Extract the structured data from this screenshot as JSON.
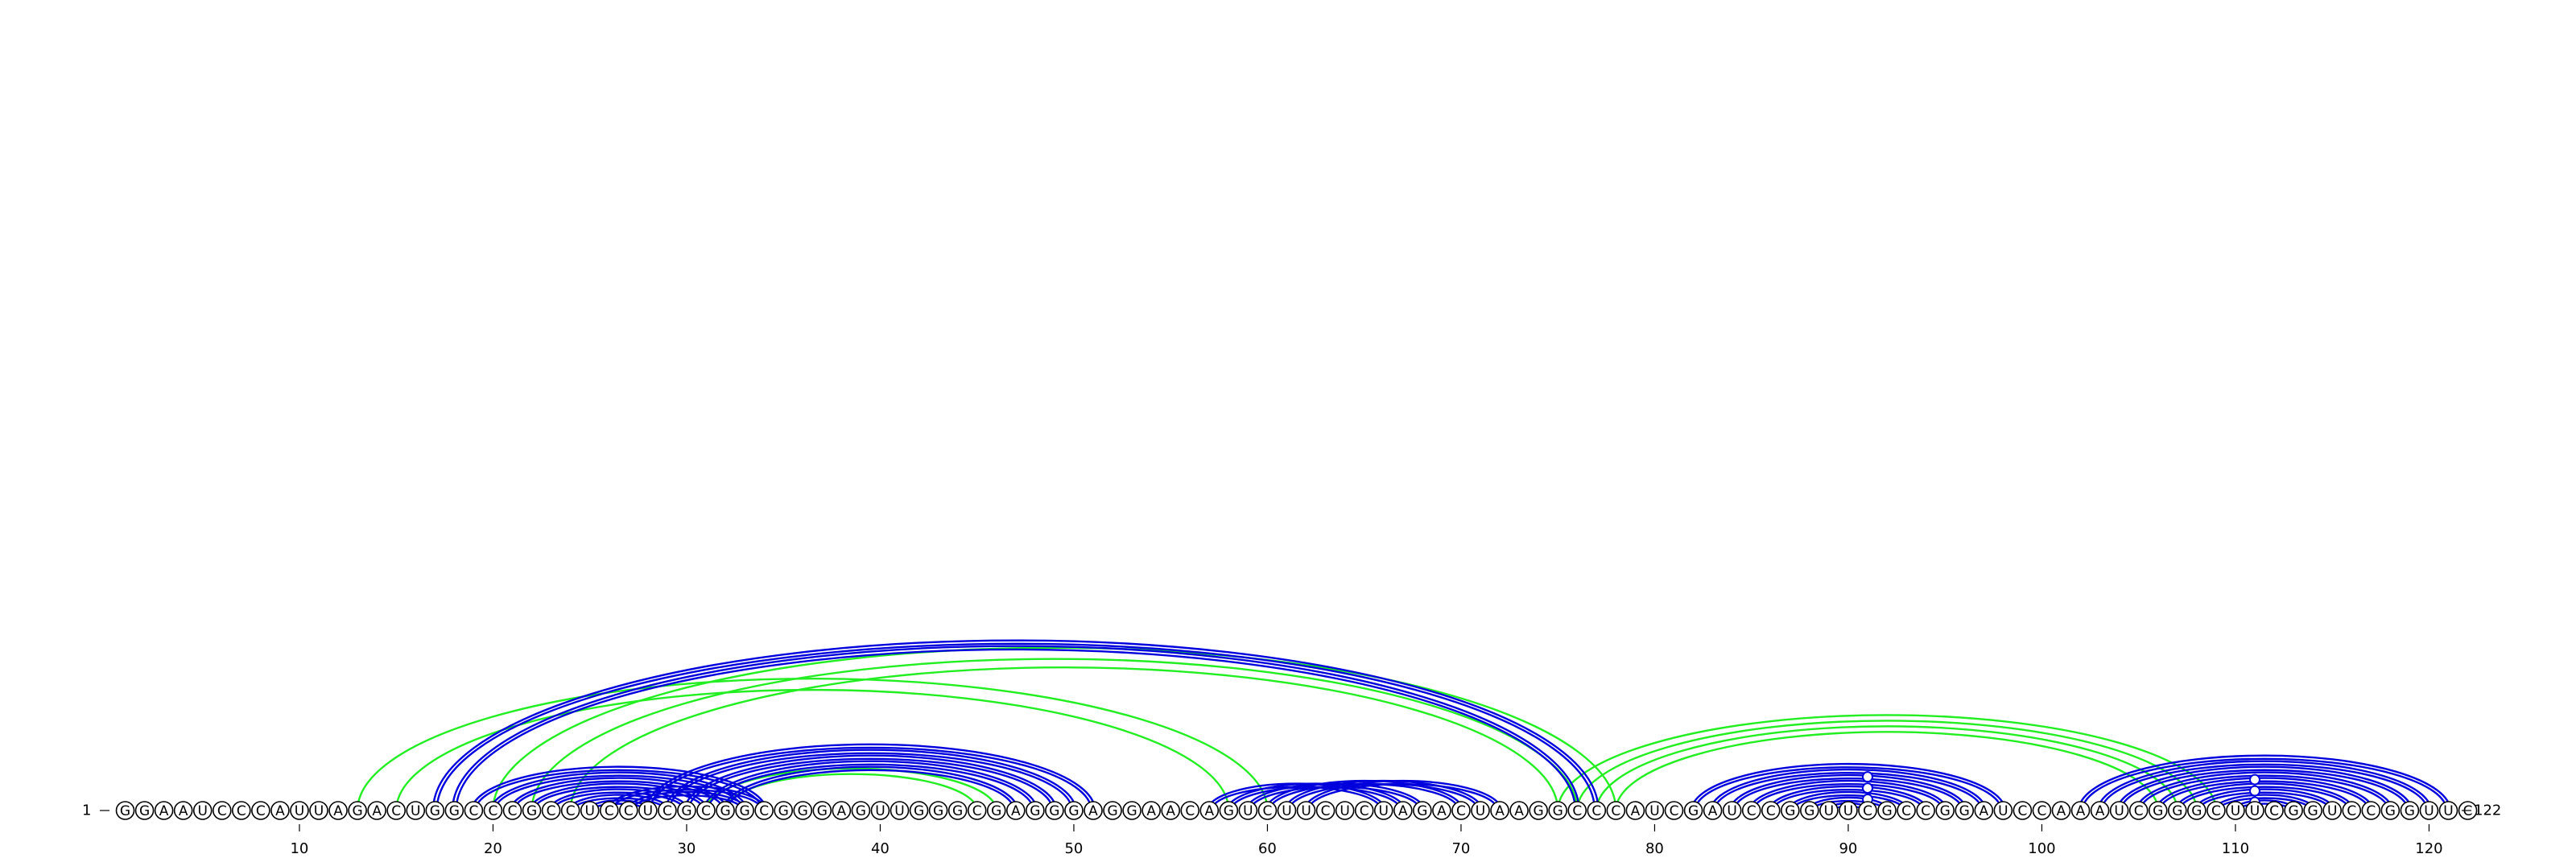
{
  "diagram": {
    "type": "rna-arc-diagram",
    "sequence": "GGAAUCCCAUUAGACUGGCCCGCCUCCUCGCGGCGGGAGUUGGGCGAGGGAGGAACAGUCUUCUCUAGACUAAGGCCCAUCGAUCCGGUUCGCCGGAUCCAAAUCGGGCUUCGGUCCGGUUC",
    "start_label": "1",
    "end_label": "122",
    "tick_labels": [
      "10",
      "20",
      "30",
      "40",
      "50",
      "60",
      "70",
      "80",
      "90",
      "100",
      "110",
      "120"
    ],
    "colors": {
      "blue": "#0000dd",
      "green": "#22ee22",
      "text": "#000000"
    },
    "arc_sets": [
      {
        "color": "green",
        "pairs": [
          [
            13,
            60
          ],
          [
            15,
            58
          ],
          [
            20,
            78
          ],
          [
            22,
            76
          ],
          [
            24,
            75
          ],
          [
            31,
            46
          ],
          [
            32,
            45
          ],
          [
            75,
            109
          ],
          [
            76,
            108
          ],
          [
            77,
            107
          ],
          [
            78,
            106
          ]
        ]
      },
      {
        "color": "blue",
        "pairs": [
          [
            17,
            77
          ],
          [
            18,
            76
          ],
          [
            19,
            34
          ],
          [
            20,
            33
          ],
          [
            21,
            32
          ],
          [
            22,
            31
          ],
          [
            23,
            30
          ],
          [
            24,
            29
          ],
          [
            25,
            28
          ],
          [
            26,
            34
          ],
          [
            27,
            33
          ],
          [
            28,
            51
          ],
          [
            29,
            50
          ],
          [
            30,
            49
          ],
          [
            31,
            48
          ],
          [
            32,
            47
          ],
          [
            57,
            66
          ],
          [
            58,
            67
          ],
          [
            59,
            68
          ],
          [
            60,
            70
          ],
          [
            61,
            71
          ],
          [
            62,
            72
          ],
          [
            82,
            98
          ],
          [
            83,
            97
          ],
          [
            84,
            96
          ],
          [
            85,
            95
          ],
          [
            86,
            94
          ],
          [
            87,
            93
          ],
          [
            88,
            92
          ],
          [
            89,
            91
          ],
          [
            102,
            121
          ],
          [
            103,
            120
          ],
          [
            104,
            119
          ],
          [
            105,
            118
          ],
          [
            106,
            117
          ],
          [
            107,
            116
          ],
          [
            108,
            115
          ],
          [
            109,
            114
          ],
          [
            110,
            113
          ]
        ]
      }
    ],
    "doubled_color": "blue",
    "hairpin_markers": [
      91,
      111
    ]
  }
}
